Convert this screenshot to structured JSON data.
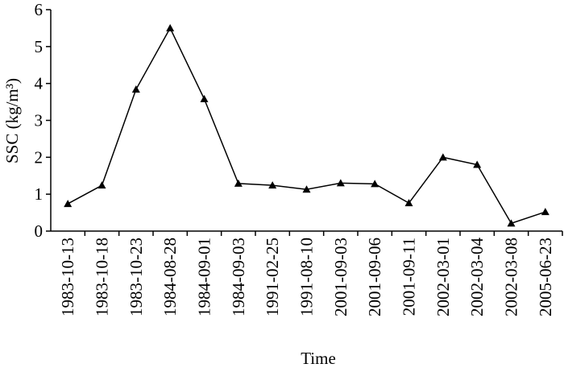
{
  "chart_data": {
    "type": "line",
    "x_label": "Time",
    "y_label": "SSC (kg/m³)",
    "categories": [
      "1983-10-13",
      "1983-10-18",
      "1983-10-23",
      "1984-08-28",
      "1984-09-01",
      "1984-09-03",
      "1991-02-25",
      "1991-08-10",
      "2001-09-03",
      "2001-09-06",
      "2001-09-11",
      "2002-03-01",
      "2002-03-04",
      "2002-03-08",
      "2005-06-23"
    ],
    "values": [
      0.74,
      1.24,
      3.84,
      5.5,
      3.58,
      1.29,
      1.24,
      1.13,
      1.3,
      1.28,
      0.76,
      2.0,
      1.8,
      0.21,
      0.52
    ],
    "color": "#000000",
    "marker": "triangle",
    "ylim": [
      0,
      6
    ],
    "yticks": [
      0,
      1,
      2,
      3,
      4,
      5,
      6
    ],
    "grid": false
  }
}
